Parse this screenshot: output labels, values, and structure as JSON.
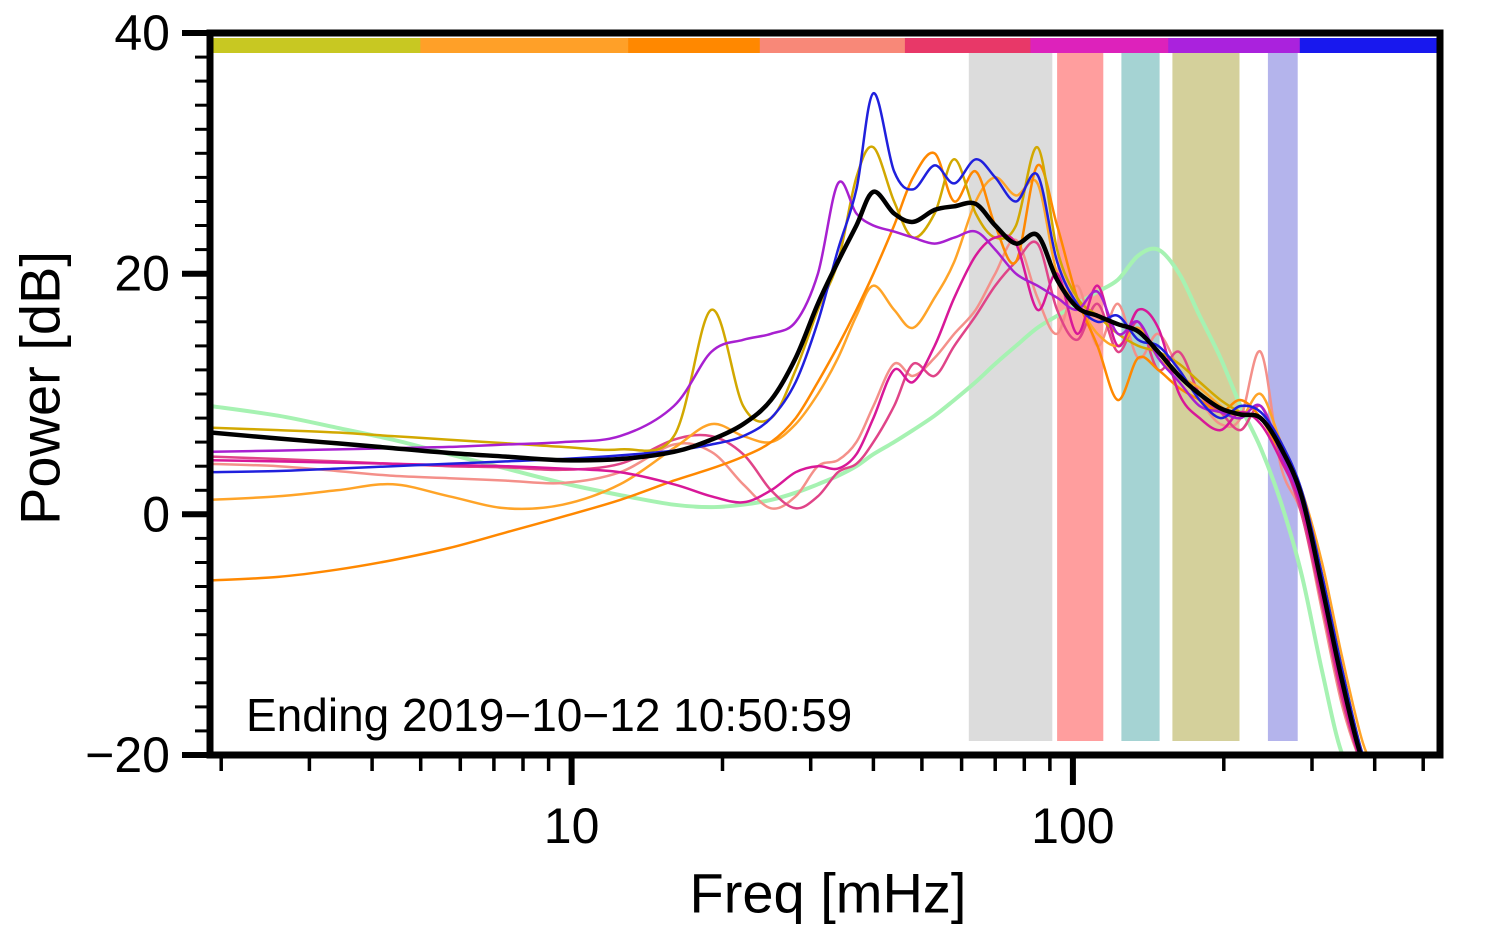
{
  "chart_data": {
    "type": "line",
    "title": "",
    "xlabel": "Freq [mHz]",
    "ylabel": "Power [dB]",
    "annotation": "Ending 2019−10−12 10:50:59",
    "x_scale": "log",
    "xlim": [
      1.9,
      540
    ],
    "ylim": [
      -20,
      40
    ],
    "grid": false,
    "legend": "none",
    "x_major_ticks": [
      10,
      100
    ],
    "x_major_labels": [
      "10",
      "100"
    ],
    "x_minor_ticks": [
      2,
      3,
      4,
      5,
      6,
      7,
      8,
      9,
      20,
      30,
      40,
      50,
      60,
      70,
      80,
      90,
      200,
      300,
      400,
      500
    ],
    "y_major_ticks": [
      -20,
      0,
      20,
      40
    ],
    "y_major_labels": [
      "−20",
      "0",
      "20",
      "40"
    ],
    "y_minor_step": 2,
    "x": [
      1.9,
      2.6,
      3.4,
      4.4,
      5.7,
      7.4,
      9.6,
      12.5,
      16,
      19,
      22,
      25,
      28,
      31,
      34,
      37,
      40,
      44,
      48,
      53,
      58,
      64,
      70,
      77,
      85,
      93,
      102,
      112,
      123,
      135,
      148,
      163,
      179,
      197,
      216,
      237,
      260,
      286,
      314,
      345,
      379,
      410
    ],
    "series": [
      {
        "name": "palegreen",
        "color": "#a6f2b2",
        "width": 4,
        "values": [
          9.0,
          8.2,
          7.2,
          6.2,
          5.0,
          3.8,
          2.6,
          1.6,
          0.8,
          0.6,
          0.8,
          1.2,
          1.8,
          2.5,
          3.2,
          4,
          5,
          6,
          7,
          8.2,
          9.5,
          11,
          12.5,
          14,
          15.5,
          16.5,
          17.5,
          18.5,
          19.5,
          21.5,
          22,
          20,
          16.5,
          13,
          9,
          5.5,
          1,
          -5,
          -13,
          -20,
          -22,
          -23
        ]
      },
      {
        "name": "salmon",
        "color": "#f4908a",
        "width": 2.5,
        "values": [
          4.2,
          4.0,
          3.6,
          3.2,
          3.0,
          2.8,
          2.6,
          3.5,
          5.8,
          5.2,
          2.5,
          0.5,
          1.5,
          4,
          4.5,
          6,
          9,
          12.5,
          11.5,
          13,
          15,
          17,
          20,
          22.8,
          18,
          15,
          19,
          14,
          17.5,
          13,
          15,
          12,
          9.5,
          7.5,
          8,
          13.5,
          4,
          0,
          -8,
          -16,
          -21,
          -23
        ]
      },
      {
        "name": "crimson",
        "color": "#e04488",
        "width": 2.5,
        "values": [
          4.8,
          4.6,
          4.4,
          4.2,
          4.0,
          3.9,
          3.7,
          4.2,
          6.2,
          6.5,
          5.0,
          2.0,
          0.5,
          1.5,
          3.5,
          4.2,
          6,
          9,
          12.5,
          11.5,
          14,
          16.5,
          19,
          21,
          22.5,
          17,
          14.5,
          17.5,
          13.5,
          16,
          12,
          13.5,
          10,
          8.5,
          7,
          9,
          5,
          0,
          -7.5,
          -15.5,
          -21,
          -23
        ]
      },
      {
        "name": "orange",
        "color": "#ffa428",
        "width": 2.5,
        "values": [
          1.2,
          1.5,
          2.0,
          2.5,
          1.5,
          0.5,
          0.8,
          2.5,
          5.5,
          7.5,
          6.5,
          6,
          7.5,
          10,
          13,
          16.5,
          19,
          17,
          15.5,
          18,
          21,
          26,
          28,
          26.5,
          27.5,
          20,
          17.5,
          15,
          14,
          15.5,
          13,
          11.5,
          10.5,
          9,
          8,
          10,
          6,
          2,
          -4,
          -12,
          -19,
          -22
        ]
      },
      {
        "name": "orange-dark",
        "color": "#ff8800",
        "width": 2.5,
        "values": [
          -5.5,
          -5.2,
          -4.6,
          -3.8,
          -2.8,
          -1.5,
          -0.2,
          1.2,
          2.8,
          3.8,
          4.8,
          6,
          8,
          11,
          14,
          17,
          20,
          24,
          28,
          30,
          26,
          28.5,
          24,
          21,
          29,
          24,
          18,
          14,
          9.5,
          13,
          12,
          10.5,
          9.5,
          8.5,
          9.5,
          8,
          5,
          1,
          -6,
          -14,
          -20,
          -22
        ]
      },
      {
        "name": "gold",
        "color": "#d2a800",
        "width": 2.5,
        "values": [
          7.2,
          7.0,
          6.8,
          6.5,
          6.2,
          5.9,
          5.6,
          5.4,
          6.5,
          17,
          9,
          8,
          12,
          17,
          21,
          28,
          30.5,
          26,
          23,
          25,
          29.5,
          25,
          23,
          24,
          30.5,
          22,
          18,
          16.5,
          15,
          14,
          13.5,
          12.5,
          11,
          9.5,
          8.5,
          8,
          5.5,
          1.5,
          -5,
          -13,
          -20,
          -22
        ]
      },
      {
        "name": "magenta",
        "color": "#d81898",
        "width": 2.5,
        "values": [
          4.5,
          4.4,
          4.3,
          4.2,
          4.1,
          4.0,
          3.8,
          3.5,
          2.5,
          1.5,
          1.0,
          2,
          3.5,
          4,
          3.8,
          5,
          8,
          12,
          11,
          14,
          18,
          21.5,
          23,
          22.5,
          17,
          20,
          15,
          19,
          14,
          17,
          15.5,
          10,
          8,
          7,
          8.5,
          7.5,
          4.5,
          0.5,
          -7,
          -15,
          -21,
          -23
        ]
      },
      {
        "name": "purple",
        "color": "#a820d0",
        "width": 2.5,
        "values": [
          5.2,
          5.3,
          5.4,
          5.5,
          5.6,
          5.8,
          6.0,
          6.5,
          9,
          13.5,
          14.5,
          15,
          16,
          20,
          27.5,
          25,
          24,
          23.5,
          23,
          22.5,
          23,
          23.5,
          22,
          20,
          19,
          18,
          17,
          18.5,
          15,
          16,
          13,
          11,
          9,
          8.5,
          8,
          9,
          5,
          1,
          -6,
          -14,
          -21,
          -23
        ]
      },
      {
        "name": "blue",
        "color": "#2020dd",
        "width": 2.5,
        "values": [
          3.5,
          3.6,
          3.8,
          4.0,
          4.2,
          4.4,
          4.6,
          4.9,
          5.3,
          5.8,
          6.5,
          8,
          11,
          16,
          22,
          27,
          35,
          28.5,
          27,
          29,
          27.5,
          29.5,
          28,
          26,
          28.2,
          21,
          17.5,
          16,
          16.5,
          14.5,
          14,
          12,
          9.5,
          8,
          9,
          8.5,
          6,
          2,
          -5,
          -13,
          -20,
          -22
        ]
      },
      {
        "name": "black-mean",
        "color": "#000000",
        "width": 4.5,
        "values": [
          6.8,
          6.3,
          5.9,
          5.5,
          5.1,
          4.8,
          4.5,
          4.6,
          5.2,
          6.2,
          7.5,
          9.5,
          13,
          17.5,
          21,
          24,
          26.8,
          25,
          24.3,
          25.3,
          25.6,
          25.8,
          24,
          22.5,
          23.2,
          19.5,
          17.2,
          16.5,
          15.8,
          15.2,
          13.5,
          11.5,
          10,
          8.8,
          8.3,
          8.0,
          5.5,
          1.5,
          -6,
          -14,
          -20.5,
          -22
        ]
      }
    ],
    "bands": [
      {
        "name": "gray",
        "color": "#dcdcdc",
        "from_mhz": 62,
        "to_mhz": 91
      },
      {
        "name": "red",
        "color": "#ff9e9e",
        "from_mhz": 93,
        "to_mhz": 115
      },
      {
        "name": "teal",
        "color": "#a5d3d3",
        "from_mhz": 125,
        "to_mhz": 149
      },
      {
        "name": "olive",
        "color": "#d4d09b",
        "from_mhz": 158,
        "to_mhz": 215
      },
      {
        "name": "lavender",
        "color": "#b4b4ec",
        "from_mhz": 245,
        "to_mhz": 281
      }
    ],
    "top_strip": [
      {
        "color": "#c8c822",
        "from": 0.0,
        "to": 0.171
      },
      {
        "color": "#ffa028",
        "from": 0.171,
        "to": 0.34
      },
      {
        "color": "#ff8800",
        "from": 0.34,
        "to": 0.447
      },
      {
        "color": "#f88878",
        "from": 0.447,
        "to": 0.565
      },
      {
        "color": "#e83868",
        "from": 0.565,
        "to": 0.667
      },
      {
        "color": "#dd22bb",
        "from": 0.667,
        "to": 0.779
      },
      {
        "color": "#aa22dd",
        "from": 0.779,
        "to": 0.886
      },
      {
        "color": "#1818ee",
        "from": 0.886,
        "to": 1.0
      }
    ]
  }
}
